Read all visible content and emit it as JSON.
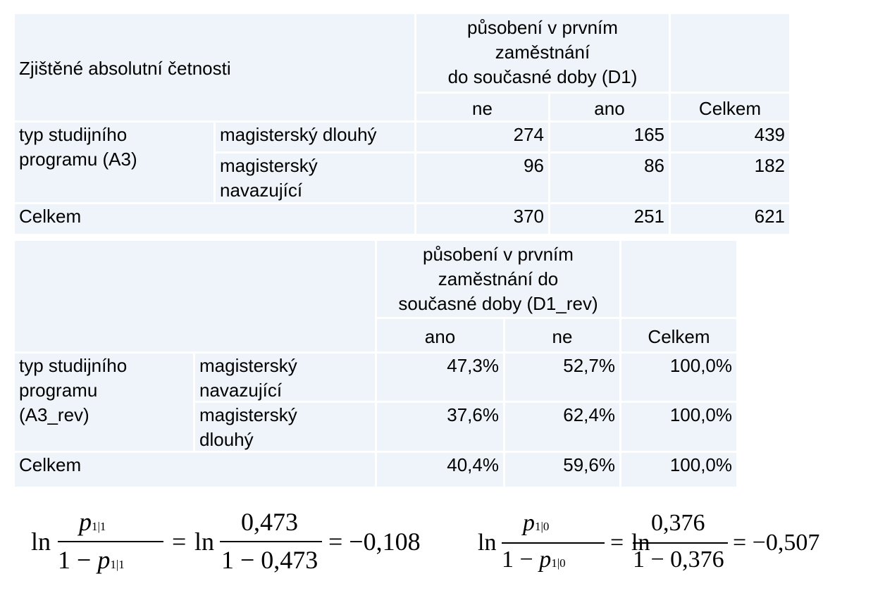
{
  "table1": {
    "corner": "Zjištěné absolutní četnosti",
    "col_group": [
      "působení v prvním",
      "zaměstnání",
      "do současné doby (D1)"
    ],
    "col_headers": [
      "ne",
      "ano",
      "Celkem"
    ],
    "row_group": [
      "typ studijního",
      "programu (A3)"
    ],
    "rows": [
      {
        "label": [
          "magisterský dlouhý"
        ],
        "values": [
          "274",
          "165",
          "439"
        ]
      },
      {
        "label": [
          "magisterský",
          "navazující"
        ],
        "values": [
          "96",
          "86",
          "182"
        ]
      }
    ],
    "total": {
      "label": "Celkem",
      "values": [
        "370",
        "251",
        "621"
      ]
    }
  },
  "table2": {
    "col_group": [
      "působení v prvním",
      "zaměstnání do",
      "současné doby (D1_rev)"
    ],
    "col_headers": [
      "ano",
      "ne",
      "Celkem"
    ],
    "row_group": [
      "typ studijního",
      "programu",
      "(A3_rev)"
    ],
    "rows": [
      {
        "label": [
          "magisterský",
          "navazující"
        ],
        "values": [
          "47,3%",
          "52,7%",
          "100,0%"
        ]
      },
      {
        "label": [
          "magisterský",
          "dlouhý"
        ],
        "values": [
          "37,6%",
          "62,4%",
          "100,0%"
        ]
      }
    ],
    "total": {
      "label": "Celkem",
      "values": [
        "40,4%",
        "59,6%",
        "100,0%"
      ]
    }
  },
  "formulas": [
    {
      "ln": "ln",
      "p": "p",
      "sub": "1|1",
      "one_minus": "1 −",
      "eq": "=",
      "num": "0,473",
      "den": "1 − 0,473",
      "result": "= −0,108"
    },
    {
      "ln": "ln",
      "p": "p",
      "sub": "1|0",
      "one_minus": "1 −",
      "eq": "=",
      "num": "0,376",
      "den": "1 − 0,376",
      "result": "= −0,507"
    }
  ]
}
